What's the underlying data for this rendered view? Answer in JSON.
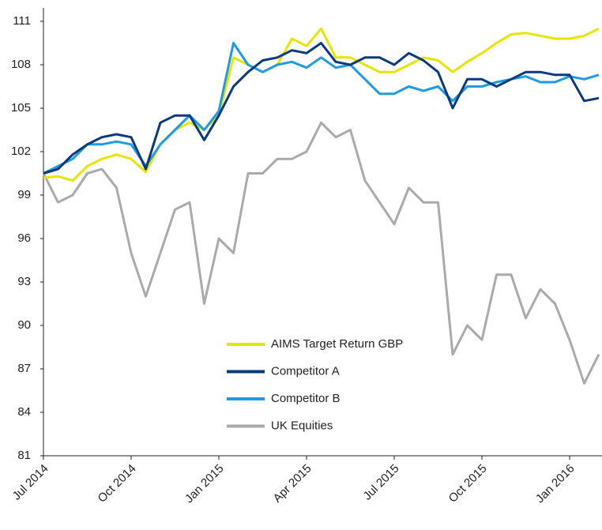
{
  "chart_data": {
    "type": "line",
    "categories": [
      "Jul 2014",
      null,
      null,
      null,
      null,
      null,
      "Oct 2014",
      null,
      null,
      null,
      null,
      null,
      "Jan 2015",
      null,
      null,
      null,
      null,
      null,
      "Apr 2015",
      null,
      null,
      null,
      null,
      null,
      "Jul 2015",
      null,
      null,
      null,
      null,
      null,
      "Oct 2015",
      null,
      null,
      null,
      null,
      null,
      "Jan 2016",
      null,
      null
    ],
    "series": [
      {
        "name": "AIMS Target Return GBP",
        "color": "#e6e600",
        "values": [
          100.2,
          100.3,
          100,
          101,
          101.5,
          101.8,
          101.5,
          100.6,
          102.5,
          103.5,
          104,
          103.5,
          104.5,
          108.5,
          108,
          107.5,
          108,
          109.8,
          109.3,
          110.5,
          108.5,
          108.5,
          108,
          107.5,
          107.5,
          108,
          108.5,
          108.3,
          107.5,
          108.2,
          108.8,
          109.5,
          110.1,
          110.2,
          110,
          109.8,
          109.8,
          110,
          110.5
        ]
      },
      {
        "name": "Competitor A",
        "color": "#0a3a7e",
        "values": [
          100.5,
          100.8,
          101.8,
          102.5,
          103,
          103.2,
          103,
          100.8,
          104,
          104.5,
          104.5,
          102.8,
          104.5,
          106.5,
          107.5,
          108.3,
          108.5,
          109,
          108.8,
          109.5,
          108.2,
          108,
          108.5,
          108.5,
          108,
          108.8,
          108.3,
          107.5,
          105,
          107,
          107,
          106.5,
          107,
          107.5,
          107.5,
          107.3,
          107.3,
          105.5,
          105.7
        ]
      },
      {
        "name": "Competitor B",
        "color": "#1e9be6",
        "values": [
          100.5,
          101,
          101.5,
          102.5,
          102.5,
          102.7,
          102.5,
          101,
          102.5,
          103.5,
          104.5,
          103.5,
          104.8,
          109.5,
          108,
          107.5,
          108,
          108.2,
          107.8,
          108.5,
          107.8,
          108,
          107,
          106,
          106,
          106.5,
          106.2,
          106.5,
          105.5,
          106.5,
          106.5,
          106.8,
          107,
          107.2,
          106.8,
          106.8,
          107.2,
          107,
          107.3
        ]
      },
      {
        "name": "UK Equities",
        "color": "#aaaaaa",
        "values": [
          100.5,
          98.5,
          99,
          100.5,
          100.8,
          99.5,
          95,
          92,
          95,
          98,
          98.5,
          91.5,
          96,
          95,
          100.5,
          100.5,
          101.5,
          101.5,
          102,
          104,
          103,
          103.5,
          100,
          98.5,
          97,
          99.5,
          98.5,
          98.5,
          88,
          90,
          89,
          93.5,
          93.5,
          90.5,
          92.5,
          91.5,
          89,
          86,
          88
        ]
      }
    ],
    "ylim": [
      81,
      111
    ],
    "yticks": [
      81,
      84,
      87,
      90,
      93,
      96,
      99,
      102,
      105,
      108,
      111
    ],
    "grid": false,
    "legend": "center"
  }
}
